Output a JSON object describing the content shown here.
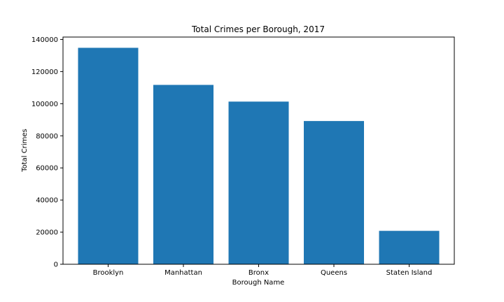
{
  "chart_data": {
    "type": "bar",
    "title": "Total Crimes per Borough, 2017",
    "xlabel": "Borough Name",
    "ylabel": "Total Crimes",
    "categories": [
      "Brooklyn",
      "Manhattan",
      "Bronx",
      "Queens",
      "Staten Island"
    ],
    "values": [
      134800,
      111700,
      101300,
      89200,
      20800
    ],
    "ylim": [
      0,
      141500
    ],
    "yticks": [
      0,
      20000,
      40000,
      60000,
      80000,
      100000,
      120000,
      140000
    ],
    "grid": false,
    "legend": "none",
    "bar_color": "#1f77b4"
  }
}
